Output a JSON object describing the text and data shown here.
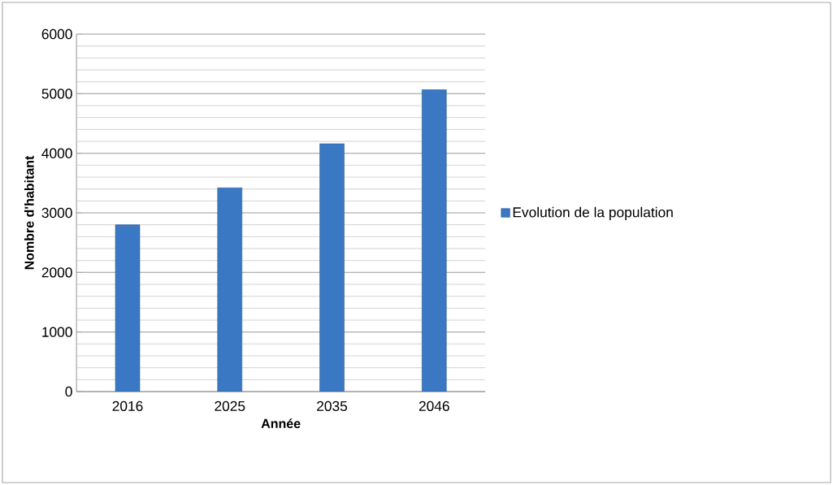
{
  "chart_data": {
    "type": "bar",
    "xlabel": "Année",
    "ylabel": "Nombre d'habitant",
    "categories": [
      "2016",
      "2025",
      "2035",
      "2046"
    ],
    "series": [
      {
        "name": "Evolution de la population",
        "color": "#3a78c4",
        "values": [
          2800,
          3420,
          4160,
          5070
        ]
      }
    ],
    "ylim": [
      0,
      6000
    ],
    "yticks": [
      0,
      1000,
      2000,
      3000,
      4000,
      5000,
      6000
    ],
    "grid": "y",
    "legend": "right"
  }
}
